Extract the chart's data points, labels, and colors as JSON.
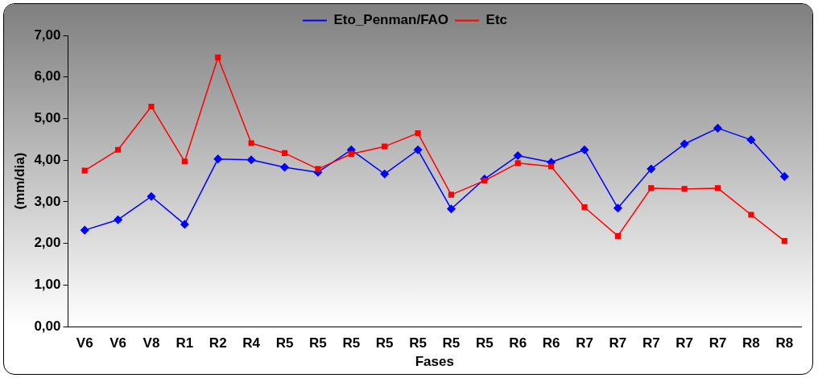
{
  "chart_data": {
    "type": "line",
    "xlabel": "Fases",
    "ylabel": "(mm/dia)",
    "categories": [
      "V6",
      "V6",
      "V8",
      "R1",
      "R2",
      "R4",
      "R5",
      "R5",
      "R5",
      "R5",
      "R5",
      "R5",
      "R5",
      "R6",
      "R6",
      "R7",
      "R7",
      "R7",
      "R7",
      "R7",
      "R8",
      "R8"
    ],
    "series": [
      {
        "name": "Eto_Penman/FAO",
        "color": "#0000ff",
        "marker": "diamond",
        "values": [
          2.32,
          2.57,
          3.13,
          2.46,
          4.03,
          4.01,
          3.83,
          3.71,
          4.25,
          3.67,
          4.25,
          2.83,
          3.55,
          4.11,
          3.95,
          4.25,
          2.85,
          3.79,
          4.39,
          4.77,
          4.49,
          3.61
        ]
      },
      {
        "name": "Etc",
        "color": "#ff0000",
        "marker": "square",
        "values": [
          3.75,
          4.25,
          5.29,
          3.97,
          6.47,
          4.41,
          4.17,
          3.79,
          4.15,
          4.33,
          4.65,
          3.17,
          3.51,
          3.93,
          3.85,
          2.87,
          2.18,
          3.33,
          3.31,
          3.33,
          2.69,
          2.06
        ]
      }
    ],
    "ylim": [
      0,
      7
    ],
    "yticks": [
      {
        "value": 0,
        "label": "0,00"
      },
      {
        "value": 1,
        "label": "1,00"
      },
      {
        "value": 2,
        "label": "2,00"
      },
      {
        "value": 3,
        "label": "3,00"
      },
      {
        "value": 4,
        "label": "4,00"
      },
      {
        "value": 5,
        "label": "5,00"
      },
      {
        "value": 6,
        "label": "6,00"
      },
      {
        "value": 7,
        "label": "7,00"
      }
    ],
    "grid": false,
    "legend": "top",
    "line_style": "solid"
  }
}
